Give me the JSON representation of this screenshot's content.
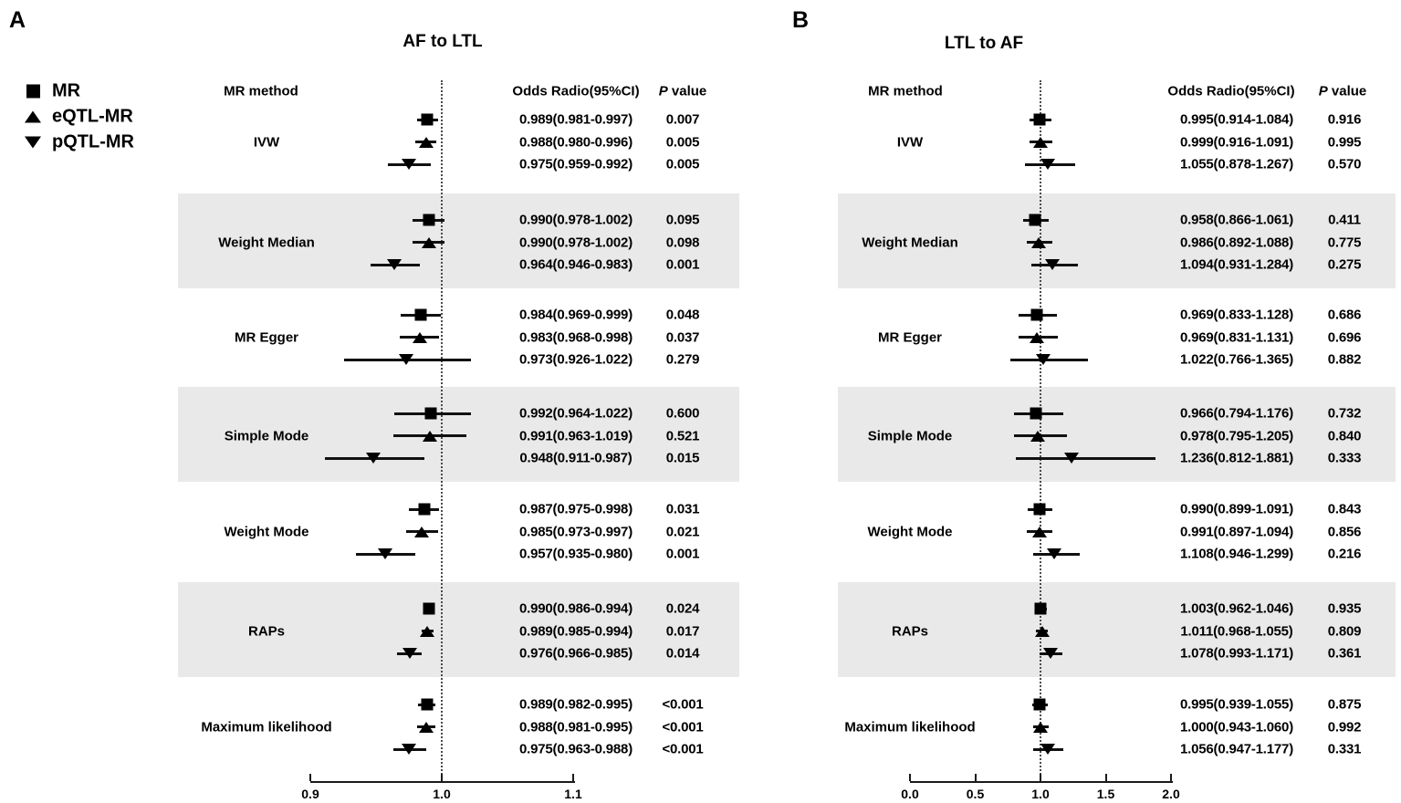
{
  "figure": {
    "legend": {
      "items": [
        {
          "marker": "square",
          "label": "MR"
        },
        {
          "marker": "triangle-up",
          "label": "eQTL-MR"
        },
        {
          "marker": "triangle-down",
          "label": "pQTL-MR"
        }
      ]
    },
    "columns": {
      "method": "MR method",
      "or": "Odds Radio(95%CI)",
      "p_italic": "P",
      "p_rest": " value"
    }
  },
  "chart_data": [
    {
      "type": "forest",
      "panel": "A",
      "title": "AF to LTL",
      "x_axis": {
        "ticks": [
          "0.9",
          "1.0",
          "1.1"
        ],
        "tick_values": [
          0.9,
          1.0,
          1.1
        ],
        "range": [
          0.9,
          1.1
        ],
        "reference_line": 1.0
      },
      "groups": [
        {
          "method": "IVW",
          "shaded": false,
          "rows": [
            {
              "series": "MR",
              "or": 0.989,
              "ci_low": 0.981,
              "ci_high": 0.997,
              "or_text": "0.989(0.981-0.997)",
              "p_text": "0.007"
            },
            {
              "series": "eQTL-MR",
              "or": 0.988,
              "ci_low": 0.98,
              "ci_high": 0.996,
              "or_text": "0.988(0.980-0.996)",
              "p_text": "0.005"
            },
            {
              "series": "pQTL-MR",
              "or": 0.975,
              "ci_low": 0.959,
              "ci_high": 0.992,
              "or_text": "0.975(0.959-0.992)",
              "p_text": "0.005"
            }
          ]
        },
        {
          "method": "Weight Median",
          "shaded": true,
          "rows": [
            {
              "series": "MR",
              "or": 0.99,
              "ci_low": 0.978,
              "ci_high": 1.002,
              "or_text": "0.990(0.978-1.002)",
              "p_text": "0.095"
            },
            {
              "series": "eQTL-MR",
              "or": 0.99,
              "ci_low": 0.978,
              "ci_high": 1.002,
              "or_text": "0.990(0.978-1.002)",
              "p_text": "0.098"
            },
            {
              "series": "pQTL-MR",
              "or": 0.964,
              "ci_low": 0.946,
              "ci_high": 0.983,
              "or_text": "0.964(0.946-0.983)",
              "p_text": "0.001"
            }
          ]
        },
        {
          "method": "MR Egger",
          "shaded": false,
          "rows": [
            {
              "series": "MR",
              "or": 0.984,
              "ci_low": 0.969,
              "ci_high": 0.999,
              "or_text": "0.984(0.969-0.999)",
              "p_text": "0.048"
            },
            {
              "series": "eQTL-MR",
              "or": 0.983,
              "ci_low": 0.968,
              "ci_high": 0.998,
              "or_text": "0.983(0.968-0.998)",
              "p_text": "0.037"
            },
            {
              "series": "pQTL-MR",
              "or": 0.973,
              "ci_low": 0.926,
              "ci_high": 1.022,
              "or_text": "0.973(0.926-1.022)",
              "p_text": "0.279"
            }
          ]
        },
        {
          "method": "Simple Mode",
          "shaded": true,
          "rows": [
            {
              "series": "MR",
              "or": 0.992,
              "ci_low": 0.964,
              "ci_high": 1.022,
              "or_text": "0.992(0.964-1.022)",
              "p_text": "0.600"
            },
            {
              "series": "eQTL-MR",
              "or": 0.991,
              "ci_low": 0.963,
              "ci_high": 1.019,
              "or_text": "0.991(0.963-1.019)",
              "p_text": "0.521"
            },
            {
              "series": "pQTL-MR",
              "or": 0.948,
              "ci_low": 0.911,
              "ci_high": 0.987,
              "or_text": "0.948(0.911-0.987)",
              "p_text": "0.015"
            }
          ]
        },
        {
          "method": "Weight Mode",
          "shaded": false,
          "rows": [
            {
              "series": "MR",
              "or": 0.987,
              "ci_low": 0.975,
              "ci_high": 0.998,
              "or_text": "0.987(0.975-0.998)",
              "p_text": "0.031"
            },
            {
              "series": "eQTL-MR",
              "or": 0.985,
              "ci_low": 0.973,
              "ci_high": 0.997,
              "or_text": "0.985(0.973-0.997)",
              "p_text": "0.021"
            },
            {
              "series": "pQTL-MR",
              "or": 0.957,
              "ci_low": 0.935,
              "ci_high": 0.98,
              "or_text": "0.957(0.935-0.980)",
              "p_text": "0.001"
            }
          ]
        },
        {
          "method": "RAPs",
          "shaded": true,
          "rows": [
            {
              "series": "MR",
              "or": 0.99,
              "ci_low": 0.986,
              "ci_high": 0.994,
              "or_text": "0.990(0.986-0.994)",
              "p_text": "0.024"
            },
            {
              "series": "eQTL-MR",
              "or": 0.989,
              "ci_low": 0.985,
              "ci_high": 0.994,
              "or_text": "0.989(0.985-0.994)",
              "p_text": "0.017"
            },
            {
              "series": "pQTL-MR",
              "or": 0.976,
              "ci_low": 0.966,
              "ci_high": 0.985,
              "or_text": "0.976(0.966-0.985)",
              "p_text": "0.014"
            }
          ]
        },
        {
          "method": "Maximum likelihood",
          "shaded": false,
          "rows": [
            {
              "series": "MR",
              "or": 0.989,
              "ci_low": 0.982,
              "ci_high": 0.995,
              "or_text": "0.989(0.982-0.995)",
              "p_text": "<0.001"
            },
            {
              "series": "eQTL-MR",
              "or": 0.988,
              "ci_low": 0.981,
              "ci_high": 0.995,
              "or_text": "0.988(0.981-0.995)",
              "p_text": "<0.001"
            },
            {
              "series": "pQTL-MR",
              "or": 0.975,
              "ci_low": 0.963,
              "ci_high": 0.988,
              "or_text": "0.975(0.963-0.988)",
              "p_text": "<0.001"
            }
          ]
        }
      ]
    },
    {
      "type": "forest",
      "panel": "B",
      "title": "LTL to AF",
      "x_axis": {
        "ticks": [
          "0.0",
          "0.5",
          "1.0",
          "1.5",
          "2.0"
        ],
        "tick_values": [
          0.0,
          0.5,
          1.0,
          1.5,
          2.0
        ],
        "range": [
          0.0,
          2.0
        ],
        "reference_line": 1.0
      },
      "groups": [
        {
          "method": "IVW",
          "shaded": false,
          "rows": [
            {
              "series": "MR",
              "or": 0.995,
              "ci_low": 0.914,
              "ci_high": 1.084,
              "or_text": "0.995(0.914-1.084)",
              "p_text": "0.916"
            },
            {
              "series": "eQTL-MR",
              "or": 0.999,
              "ci_low": 0.916,
              "ci_high": 1.091,
              "or_text": "0.999(0.916-1.091)",
              "p_text": "0.995"
            },
            {
              "series": "pQTL-MR",
              "or": 1.055,
              "ci_low": 0.878,
              "ci_high": 1.267,
              "or_text": "1.055(0.878-1.267)",
              "p_text": "0.570"
            }
          ]
        },
        {
          "method": "Weight Median",
          "shaded": true,
          "rows": [
            {
              "series": "MR",
              "or": 0.958,
              "ci_low": 0.866,
              "ci_high": 1.061,
              "or_text": "0.958(0.866-1.061)",
              "p_text": "0.411"
            },
            {
              "series": "eQTL-MR",
              "or": 0.986,
              "ci_low": 0.892,
              "ci_high": 1.088,
              "or_text": "0.986(0.892-1.088)",
              "p_text": "0.775"
            },
            {
              "series": "pQTL-MR",
              "or": 1.094,
              "ci_low": 0.931,
              "ci_high": 1.284,
              "or_text": "1.094(0.931-1.284)",
              "p_text": "0.275"
            }
          ]
        },
        {
          "method": "MR Egger",
          "shaded": false,
          "rows": [
            {
              "series": "MR",
              "or": 0.969,
              "ci_low": 0.833,
              "ci_high": 1.128,
              "or_text": "0.969(0.833-1.128)",
              "p_text": "0.686"
            },
            {
              "series": "eQTL-MR",
              "or": 0.969,
              "ci_low": 0.831,
              "ci_high": 1.131,
              "or_text": "0.969(0.831-1.131)",
              "p_text": "0.696"
            },
            {
              "series": "pQTL-MR",
              "or": 1.022,
              "ci_low": 0.766,
              "ci_high": 1.365,
              "or_text": "1.022(0.766-1.365)",
              "p_text": "0.882"
            }
          ]
        },
        {
          "method": "Simple Mode",
          "shaded": true,
          "rows": [
            {
              "series": "MR",
              "or": 0.966,
              "ci_low": 0.794,
              "ci_high": 1.176,
              "or_text": "0.966(0.794-1.176)",
              "p_text": "0.732"
            },
            {
              "series": "eQTL-MR",
              "or": 0.978,
              "ci_low": 0.795,
              "ci_high": 1.205,
              "or_text": "0.978(0.795-1.205)",
              "p_text": "0.840"
            },
            {
              "series": "pQTL-MR",
              "or": 1.236,
              "ci_low": 0.812,
              "ci_high": 1.881,
              "or_text": "1.236(0.812-1.881)",
              "p_text": "0.333"
            }
          ]
        },
        {
          "method": "Weight Mode",
          "shaded": false,
          "rows": [
            {
              "series": "MR",
              "or": 0.99,
              "ci_low": 0.899,
              "ci_high": 1.091,
              "or_text": "0.990(0.899-1.091)",
              "p_text": "0.843"
            },
            {
              "series": "eQTL-MR",
              "or": 0.991,
              "ci_low": 0.897,
              "ci_high": 1.094,
              "or_text": "0.991(0.897-1.094)",
              "p_text": "0.856"
            },
            {
              "series": "pQTL-MR",
              "or": 1.108,
              "ci_low": 0.946,
              "ci_high": 1.299,
              "or_text": "1.108(0.946-1.299)",
              "p_text": "0.216"
            }
          ]
        },
        {
          "method": "RAPs",
          "shaded": true,
          "rows": [
            {
              "series": "MR",
              "or": 1.003,
              "ci_low": 0.962,
              "ci_high": 1.046,
              "or_text": "1.003(0.962-1.046)",
              "p_text": "0.935"
            },
            {
              "series": "eQTL-MR",
              "or": 1.011,
              "ci_low": 0.968,
              "ci_high": 1.055,
              "or_text": "1.011(0.968-1.055)",
              "p_text": "0.809"
            },
            {
              "series": "pQTL-MR",
              "or": 1.078,
              "ci_low": 0.993,
              "ci_high": 1.171,
              "or_text": "1.078(0.993-1.171)",
              "p_text": "0.361"
            }
          ]
        },
        {
          "method": "Maximum likelihood",
          "shaded": false,
          "rows": [
            {
              "series": "MR",
              "or": 0.995,
              "ci_low": 0.939,
              "ci_high": 1.055,
              "or_text": "0.995(0.939-1.055)",
              "p_text": "0.875"
            },
            {
              "series": "eQTL-MR",
              "or": 1.0,
              "ci_low": 0.943,
              "ci_high": 1.06,
              "or_text": "1.000(0.943-1.060)",
              "p_text": "0.992"
            },
            {
              "series": "pQTL-MR",
              "or": 1.056,
              "ci_low": 0.947,
              "ci_high": 1.177,
              "or_text": "1.056(0.947-1.177)",
              "p_text": "0.331"
            }
          ]
        }
      ]
    }
  ]
}
